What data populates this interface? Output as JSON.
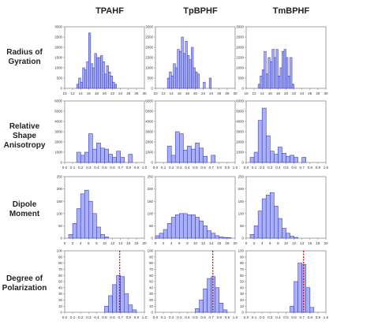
{
  "columns": [
    "TPAHF",
    "TpBPHF",
    "TmBPHF"
  ],
  "rows": [
    [
      "Radius of",
      "Gyration"
    ],
    [
      "Relative",
      "Shape",
      "Anisotropy"
    ],
    [
      "Dipole",
      "Moment"
    ],
    [
      "Degree of",
      "Polarization"
    ]
  ],
  "colors": {
    "bar_fill": "#aab0f5",
    "bar_edge": "#3a3fd0",
    "frame": "#8a8a8a",
    "marker": "#cc0000"
  },
  "chart_data": [
    {
      "type": "bar",
      "row": 0,
      "col": 0,
      "xlim": [
        10,
        30
      ],
      "ylim": [
        0,
        3000
      ],
      "xticks": [
        10,
        12,
        14,
        16,
        18,
        20,
        22,
        24,
        26,
        28,
        30
      ],
      "yticks": [
        0,
        500,
        1000,
        1500,
        2000,
        2500,
        3000
      ],
      "bin_width": 0.5,
      "x": [
        13.0,
        13.5,
        14.0,
        14.5,
        15.0,
        15.5,
        16.0,
        16.5,
        17.0,
        17.5,
        18.0,
        18.5,
        19.0,
        19.5,
        20.0,
        20.5,
        21.0,
        21.5,
        22.0,
        22.5
      ],
      "values": [
        200,
        500,
        300,
        1000,
        900,
        1300,
        2700,
        1200,
        1000,
        1700,
        1500,
        1500,
        1600,
        1300,
        700,
        1100,
        800,
        600,
        300,
        200
      ]
    },
    {
      "type": "bar",
      "row": 0,
      "col": 1,
      "xlim": [
        10,
        30
      ],
      "ylim": [
        0,
        3000
      ],
      "xticks": [
        10,
        12,
        14,
        16,
        18,
        20,
        22,
        24,
        26,
        28,
        30
      ],
      "yticks": [
        0,
        500,
        1000,
        1500,
        2000,
        2500,
        3000
      ],
      "bin_width": 0.5,
      "x": [
        13.0,
        13.5,
        14.0,
        14.5,
        15.0,
        15.5,
        16.0,
        16.5,
        17.0,
        17.5,
        18.0,
        18.5,
        19.0,
        19.5,
        20.0,
        20.5,
        22.0,
        23.5
      ],
      "values": [
        500,
        800,
        600,
        1200,
        1000,
        1900,
        1800,
        2500,
        1700,
        2300,
        1600,
        1400,
        2000,
        1000,
        800,
        700,
        300,
        500
      ]
    },
    {
      "type": "bar",
      "row": 0,
      "col": 2,
      "xlim": [
        10,
        30
      ],
      "ylim": [
        0,
        3000
      ],
      "xticks": [
        10,
        12,
        14,
        16,
        18,
        20,
        22,
        24,
        26,
        28,
        30
      ],
      "yticks": [
        0,
        500,
        1000,
        1500,
        2000,
        2500,
        3000
      ],
      "bin_width": 0.5,
      "x": [
        13.0,
        13.5,
        14.0,
        14.5,
        15.0,
        15.5,
        16.0,
        16.5,
        17.0,
        17.5,
        18.0,
        18.5,
        19.0,
        19.5,
        20.0,
        20.5,
        21.0,
        21.5
      ],
      "values": [
        200,
        600,
        900,
        1800,
        700,
        1500,
        1300,
        1900,
        1500,
        1900,
        600,
        1000,
        1800,
        1900,
        1500,
        600,
        1500,
        200
      ]
    },
    {
      "type": "bar",
      "row": 1,
      "col": 0,
      "xlim": [
        0,
        1
      ],
      "ylim": [
        0,
        6000
      ],
      "xticks": [
        0.0,
        0.1,
        0.2,
        0.3,
        0.4,
        0.5,
        0.6,
        0.7,
        0.8,
        0.9,
        1.0
      ],
      "yticks": [
        0,
        1000,
        2000,
        3000,
        4000,
        5000,
        6000
      ],
      "bin_width": 0.05,
      "x": [
        0.15,
        0.2,
        0.25,
        0.3,
        0.35,
        0.4,
        0.45,
        0.5,
        0.55,
        0.6,
        0.65,
        0.7,
        0.75,
        0.8
      ],
      "values": [
        1000,
        700,
        1000,
        2800,
        1300,
        1900,
        1400,
        1300,
        800,
        500,
        1100,
        500,
        0,
        800
      ]
    },
    {
      "type": "bar",
      "row": 1,
      "col": 1,
      "xlim": [
        0,
        1
      ],
      "ylim": [
        0,
        6000
      ],
      "xticks": [
        0.0,
        0.1,
        0.2,
        0.3,
        0.4,
        0.5,
        0.6,
        0.7,
        0.8,
        0.9,
        1.0
      ],
      "yticks": [
        0,
        1000,
        2000,
        3000,
        4000,
        5000,
        6000
      ],
      "bin_width": 0.05,
      "x": [
        0.15,
        0.2,
        0.25,
        0.3,
        0.35,
        0.4,
        0.45,
        0.5,
        0.55,
        0.6,
        0.65,
        0.7
      ],
      "values": [
        1600,
        700,
        3000,
        2800,
        1200,
        1600,
        1300,
        1900,
        1400,
        600,
        0,
        700
      ]
    },
    {
      "type": "bar",
      "row": 1,
      "col": 2,
      "xlim": [
        0,
        1
      ],
      "ylim": [
        0,
        6000
      ],
      "xticks": [
        0.0,
        0.1,
        0.2,
        0.3,
        0.4,
        0.5,
        0.6,
        0.7,
        0.8,
        0.9,
        1.0
      ],
      "yticks": [
        0,
        1000,
        2000,
        3000,
        4000,
        5000,
        6000
      ],
      "bin_width": 0.05,
      "x": [
        0.05,
        0.1,
        0.15,
        0.2,
        0.25,
        0.3,
        0.35,
        0.4,
        0.45,
        0.5,
        0.55,
        0.6,
        0.65,
        0.7
      ],
      "values": [
        500,
        1000,
        4100,
        5300,
        2600,
        1100,
        800,
        1500,
        900,
        600,
        700,
        500,
        0,
        500
      ]
    },
    {
      "type": "bar",
      "row": 2,
      "col": 0,
      "xlim": [
        0,
        20
      ],
      "ylim": [
        0,
        250
      ],
      "xticks": [
        0,
        2,
        4,
        6,
        8,
        10,
        12,
        14,
        16,
        18,
        20
      ],
      "yticks": [
        0,
        50,
        100,
        150,
        200,
        250
      ],
      "bin_width": 1,
      "x": [
        1,
        2,
        3,
        4,
        5,
        6,
        7,
        8,
        9,
        10
      ],
      "values": [
        15,
        60,
        120,
        180,
        195,
        150,
        100,
        45,
        15,
        5
      ]
    },
    {
      "type": "bar",
      "row": 2,
      "col": 1,
      "xlim": [
        0,
        20
      ],
      "ylim": [
        0,
        250
      ],
      "xticks": [
        0,
        2,
        4,
        6,
        8,
        10,
        12,
        14,
        16,
        18,
        20
      ],
      "yticks": [
        0,
        50,
        100,
        150,
        200,
        250
      ],
      "bin_width": 1,
      "x": [
        0,
        1,
        2,
        3,
        4,
        5,
        6,
        7,
        8,
        9,
        10,
        11,
        12,
        13,
        14,
        15,
        16,
        17,
        18
      ],
      "values": [
        10,
        20,
        35,
        60,
        85,
        95,
        100,
        100,
        95,
        95,
        85,
        70,
        50,
        30,
        20,
        10,
        5,
        3,
        2
      ]
    },
    {
      "type": "bar",
      "row": 2,
      "col": 2,
      "xlim": [
        0,
        20
      ],
      "ylim": [
        0,
        250
      ],
      "xticks": [
        0,
        2,
        4,
        6,
        8,
        10,
        12,
        14,
        16,
        18,
        20
      ],
      "yticks": [
        0,
        50,
        100,
        150,
        200,
        250
      ],
      "bin_width": 1,
      "x": [
        1,
        2,
        3,
        4,
        5,
        6,
        7,
        8,
        9,
        10,
        11,
        12
      ],
      "values": [
        15,
        50,
        110,
        160,
        175,
        185,
        130,
        80,
        40,
        20,
        8,
        3
      ]
    },
    {
      "type": "bar",
      "row": 3,
      "col": 0,
      "xlim": [
        0,
        1
      ],
      "ylim": [
        0,
        100
      ],
      "xticks": [
        0.0,
        0.1,
        0.2,
        0.3,
        0.4,
        0.5,
        0.6,
        0.7,
        0.8,
        0.9,
        1.0
      ],
      "yticks": [
        0,
        10,
        20,
        30,
        40,
        50,
        60,
        70,
        80,
        90,
        100
      ],
      "bin_width": 0.05,
      "marker": 0.69,
      "x": [
        0.5,
        0.55,
        0.6,
        0.65,
        0.7,
        0.75,
        0.8,
        0.85
      ],
      "values": [
        10,
        27,
        45,
        60,
        58,
        30,
        12,
        4
      ]
    },
    {
      "type": "bar",
      "row": 3,
      "col": 1,
      "xlim": [
        0,
        1
      ],
      "ylim": [
        0,
        100
      ],
      "xticks": [
        0.0,
        0.1,
        0.2,
        0.3,
        0.4,
        0.5,
        0.6,
        0.7,
        0.8,
        0.9,
        1.0
      ],
      "yticks": [
        0,
        10,
        20,
        30,
        40,
        50,
        60,
        70,
        80,
        90,
        100
      ],
      "bin_width": 0.05,
      "marker": 0.72,
      "x": [
        0.5,
        0.55,
        0.6,
        0.65,
        0.7,
        0.75,
        0.8,
        0.85
      ],
      "values": [
        6,
        20,
        38,
        55,
        58,
        40,
        15,
        4
      ]
    },
    {
      "type": "bar",
      "row": 3,
      "col": 2,
      "xlim": [
        0,
        1
      ],
      "ylim": [
        0,
        100
      ],
      "xticks": [
        0.0,
        0.1,
        0.2,
        0.3,
        0.4,
        0.5,
        0.6,
        0.7,
        0.8,
        0.9,
        1.0
      ],
      "yticks": [
        0,
        10,
        20,
        30,
        40,
        50,
        60,
        70,
        80,
        90,
        100
      ],
      "bin_width": 0.05,
      "marker": 0.72,
      "x": [
        0.55,
        0.6,
        0.65,
        0.7,
        0.75,
        0.8
      ],
      "values": [
        10,
        50,
        80,
        78,
        40,
        8
      ]
    }
  ]
}
